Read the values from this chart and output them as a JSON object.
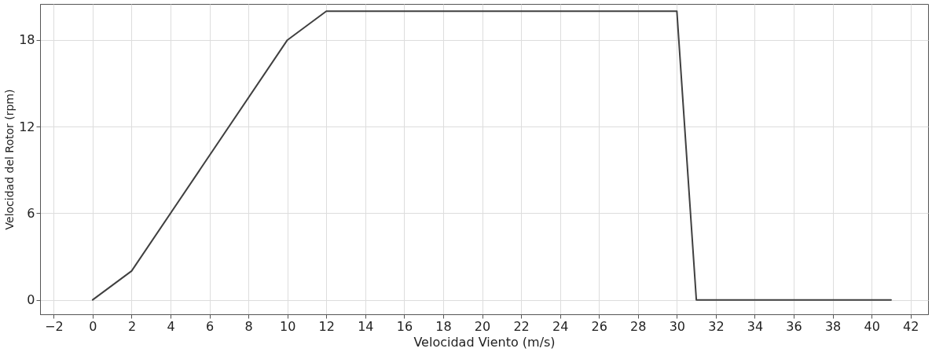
{
  "chart_data": {
    "type": "line",
    "xlabel": "Velocidad Viento (m/s)",
    "ylabel": "Velocidad del Rotor  (rpm)",
    "x": [
      0,
      2,
      10,
      12,
      30,
      31,
      41
    ],
    "series": [
      {
        "color": "#404040",
        "values": [
          0,
          2,
          18,
          20,
          20,
          0,
          0
        ]
      }
    ],
    "xlim": [
      -2.7,
      42.9
    ],
    "ylim": [
      -1,
      20.5
    ],
    "xticks": [
      -2,
      0,
      2,
      4,
      6,
      8,
      10,
      12,
      14,
      16,
      18,
      20,
      22,
      24,
      26,
      28,
      30,
      32,
      34,
      36,
      38,
      40,
      42
    ],
    "yticks": [
      0,
      6,
      12,
      18
    ],
    "grid": true,
    "marker": "none",
    "line_style": "solid"
  }
}
